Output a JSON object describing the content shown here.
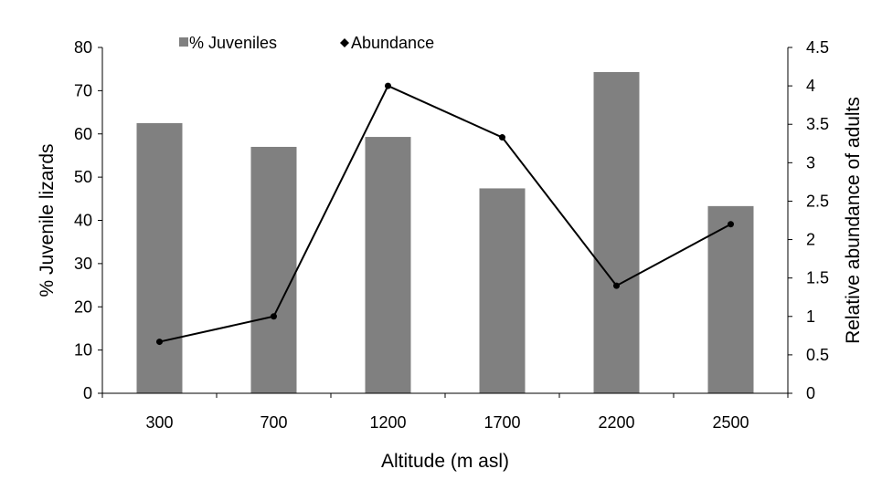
{
  "chart_data": {
    "type": "bar",
    "categories": [
      "300",
      "700",
      "1200",
      "1700",
      "2200",
      "2500"
    ],
    "series": [
      {
        "name": "% Juveniles",
        "type": "bar",
        "axis": "left",
        "color": "#808080",
        "values": [
          62.5,
          57,
          59.3,
          47.4,
          74.3,
          43.3
        ]
      },
      {
        "name": "Abundance",
        "type": "line",
        "axis": "right",
        "color": "#000000",
        "marker": "diamond",
        "values": [
          0.67,
          1.0,
          4.0,
          3.33,
          1.4,
          2.2
        ]
      }
    ],
    "xlabel": "Altitude (m asl)",
    "ylabel": "% Juvenile lizards",
    "y2label": "Relative abundance of adults",
    "ylim": [
      0,
      80
    ],
    "y2lim": [
      0,
      4.5
    ],
    "yticks": [
      "0",
      "10",
      "20",
      "30",
      "40",
      "50",
      "60",
      "70",
      "80"
    ],
    "y2ticks": [
      "0",
      "0.5",
      "1",
      "1.5",
      "2",
      "2.5",
      "3",
      "3.5",
      "4",
      "4.5"
    ],
    "grid": false,
    "legend": "top"
  }
}
